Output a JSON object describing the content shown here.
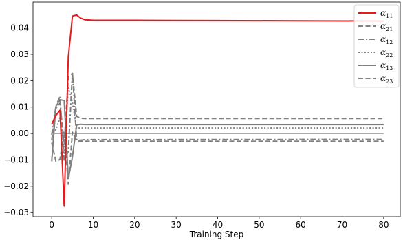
{
  "chart_data": {
    "type": "line",
    "title": "",
    "xlabel": "Training Step",
    "ylabel": "",
    "xlim": [
      -4.5,
      84
    ],
    "ylim": [
      -0.0315,
      0.0498
    ],
    "x_ticks": [
      0,
      10,
      20,
      30,
      40,
      50,
      60,
      70,
      80
    ],
    "y_ticks": [
      -0.03,
      -0.02,
      -0.01,
      0.0,
      0.01,
      0.02,
      0.03,
      0.04
    ],
    "x_tick_labels": [
      "0",
      "10",
      "20",
      "30",
      "40",
      "50",
      "60",
      "70",
      "80"
    ],
    "y_tick_labels": [
      "−0.03",
      "−0.02",
      "−0.01",
      "0.00",
      "0.01",
      "0.02",
      "0.03",
      "0.04"
    ],
    "grid": false,
    "legend_position": "top-right",
    "legend_entries": [
      {
        "base": "α",
        "sub": "11"
      },
      {
        "base": "α",
        "sub": "21"
      },
      {
        "base": "α",
        "sub": "12"
      },
      {
        "base": "α",
        "sub": "22"
      },
      {
        "base": "α",
        "sub": "13"
      },
      {
        "base": "α",
        "sub": "23"
      }
    ],
    "series": [
      {
        "name": "α₁₁",
        "color": "#e41a1c",
        "dash": "solid",
        "points": [
          [
            0,
            0.0035
          ],
          [
            1,
            0.0068
          ],
          [
            2,
            0.0088
          ],
          [
            3,
            -0.0275
          ],
          [
            4,
            0.029
          ],
          [
            5,
            0.0445
          ],
          [
            6,
            0.0449
          ],
          [
            7,
            0.0437
          ],
          [
            8,
            0.0431
          ],
          [
            10,
            0.0429
          ],
          [
            20,
            0.0429
          ],
          [
            40,
            0.0428
          ],
          [
            60,
            0.0427
          ],
          [
            80,
            0.0426
          ]
        ]
      },
      {
        "name": "α₂₁",
        "color": "#808080",
        "dash": "dashed",
        "points": [
          [
            0,
            -0.0025
          ],
          [
            1,
            0.0095
          ],
          [
            2,
            0.0115
          ],
          [
            3,
            -0.0042
          ],
          [
            4,
            0.0215
          ],
          [
            5,
            0.0228
          ],
          [
            6,
            0.0065
          ],
          [
            7,
            0.0058
          ],
          [
            8,
            0.0057
          ],
          [
            80,
            0.0057
          ]
        ]
      },
      {
        "name": "α₁₂",
        "color": "#808080",
        "dash": "dashdot",
        "points": [
          [
            0,
            -0.0005
          ],
          [
            1,
            0.0102
          ],
          [
            2,
            0.0142
          ],
          [
            3,
            -0.0103
          ],
          [
            4,
            -0.0068
          ],
          [
            5,
            0.0232
          ],
          [
            6,
            -0.0022
          ],
          [
            7,
            -0.0025
          ],
          [
            8,
            -0.0023
          ],
          [
            80,
            -0.0022
          ]
        ]
      },
      {
        "name": "α₂₂",
        "color": "#808080",
        "dash": "dotted",
        "points": [
          [
            0,
            -0.0008
          ],
          [
            1,
            0.0015
          ],
          [
            2,
            0.006
          ],
          [
            3,
            -0.0075
          ],
          [
            4,
            0.0178
          ],
          [
            5,
            0.0118
          ],
          [
            6,
            0.002
          ],
          [
            7,
            0.0021
          ],
          [
            8,
            0.0021
          ],
          [
            80,
            0.0021
          ]
        ]
      },
      {
        "name": "α₁₃",
        "color": "#808080",
        "dash": "solid",
        "points": [
          [
            0,
            -0.0105
          ],
          [
            1,
            0.0102
          ],
          [
            2,
            0.0128
          ],
          [
            3,
            0.0125
          ],
          [
            4,
            -0.0172
          ],
          [
            5,
            -0.0088
          ],
          [
            6,
            0.0032
          ],
          [
            7,
            0.0035
          ],
          [
            8,
            0.0034
          ],
          [
            80,
            0.0034
          ]
        ]
      },
      {
        "name": "α₂₃",
        "color": "#808080",
        "dash": "dashed",
        "points": [
          [
            0,
            -0.0035
          ],
          [
            1,
            -0.0105
          ],
          [
            2,
            -0.0098
          ],
          [
            3,
            0.0005
          ],
          [
            4,
            -0.0192
          ],
          [
            5,
            0.0005
          ],
          [
            6,
            -0.0028
          ],
          [
            7,
            -0.0029
          ],
          [
            8,
            -0.0029
          ],
          [
            80,
            -0.0029
          ]
        ]
      }
    ],
    "thin_reference_line": {
      "color": "#555555",
      "points": [
        [
          0,
          0.0
        ],
        [
          80,
          0.0
        ]
      ]
    }
  }
}
